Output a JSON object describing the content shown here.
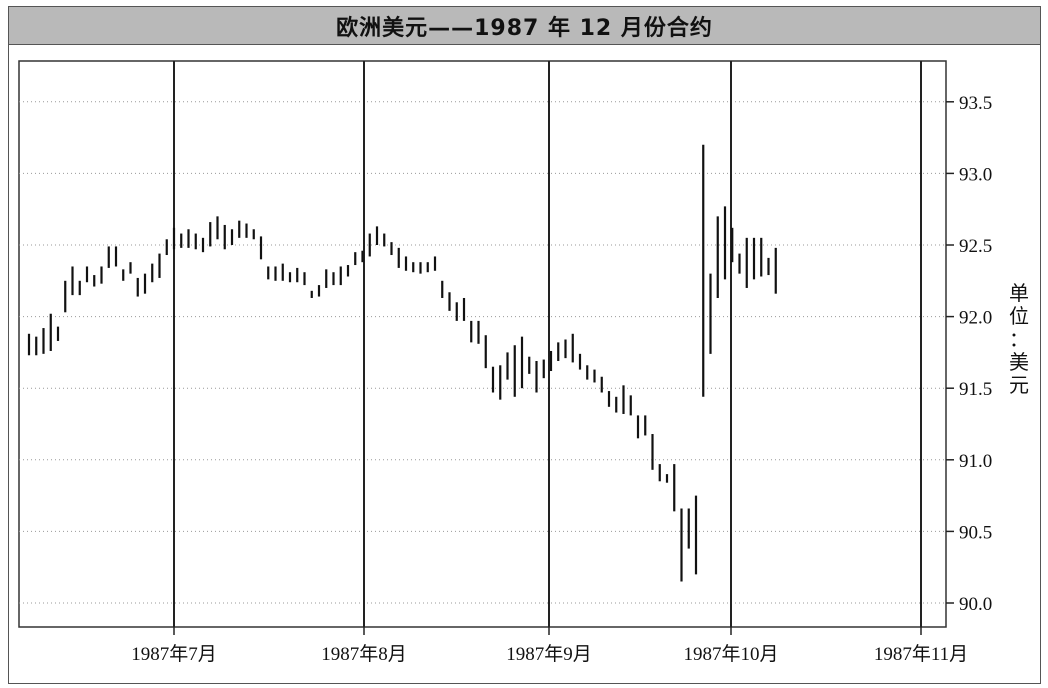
{
  "chart_data": {
    "type": "ohlc",
    "title": "欧洲美元——1987 年 12 月份合约",
    "ylabel": "单位：美元",
    "y_axis_side": "right",
    "ylim": [
      89.95,
      93.75
    ],
    "y_ticks": [
      "90.0",
      "90.5",
      "91.0",
      "91.5",
      "92.0",
      "92.5",
      "93.0",
      "93.5"
    ],
    "x_ticks": [
      "1987年7月",
      "1987年8月",
      "1987年9月",
      "1987年10月",
      "1987年11月"
    ],
    "grid": "vertical lines at month starts, dotted horizontal lines at y ticks",
    "bars": [
      [
        91.88,
        91.73
      ],
      [
        91.86,
        91.73
      ],
      [
        91.92,
        91.74
      ],
      [
        92.02,
        91.76
      ],
      [
        91.93,
        91.83
      ],
      [
        92.25,
        92.03
      ],
      [
        92.35,
        92.15
      ],
      [
        92.25,
        92.15
      ],
      [
        92.35,
        92.24
      ],
      [
        92.29,
        92.21
      ],
      [
        92.35,
        92.23
      ],
      [
        92.49,
        92.34
      ],
      [
        92.49,
        92.35
      ],
      [
        92.33,
        92.25
      ],
      [
        92.38,
        92.3
      ],
      [
        92.27,
        92.14
      ],
      [
        92.3,
        92.16
      ],
      [
        92.37,
        92.24
      ],
      [
        92.44,
        92.27
      ],
      [
        92.54,
        92.43
      ],
      [
        92.62,
        92.47
      ],
      [
        92.58,
        92.48
      ],
      [
        92.61,
        92.48
      ],
      [
        92.58,
        92.47
      ],
      [
        92.55,
        92.45
      ],
      [
        92.66,
        92.49
      ],
      [
        92.7,
        92.54
      ],
      [
        92.64,
        92.47
      ],
      [
        92.61,
        92.5
      ],
      [
        92.67,
        92.55
      ],
      [
        92.65,
        92.55
      ],
      [
        92.61,
        92.54
      ],
      [
        92.56,
        92.4
      ],
      [
        92.35,
        92.26
      ],
      [
        92.35,
        92.25
      ],
      [
        92.37,
        92.25
      ],
      [
        92.31,
        92.24
      ],
      [
        92.34,
        92.24
      ],
      [
        92.31,
        92.22
      ],
      [
        92.18,
        92.13
      ],
      [
        92.22,
        92.14
      ],
      [
        92.33,
        92.2
      ],
      [
        92.31,
        92.22
      ],
      [
        92.35,
        92.22
      ],
      [
        92.36,
        92.28
      ],
      [
        92.45,
        92.36
      ],
      [
        92.46,
        92.38
      ],
      [
        92.58,
        92.42
      ],
      [
        92.63,
        92.5
      ],
      [
        92.58,
        92.49
      ],
      [
        92.52,
        92.43
      ],
      [
        92.48,
        92.34
      ],
      [
        92.42,
        92.32
      ],
      [
        92.38,
        92.31
      ],
      [
        92.38,
        92.3
      ],
      [
        92.38,
        92.31
      ],
      [
        92.42,
        92.32
      ],
      [
        92.25,
        92.13
      ],
      [
        92.17,
        92.04
      ],
      [
        92.1,
        91.97
      ],
      [
        92.13,
        91.97
      ],
      [
        91.97,
        91.82
      ],
      [
        91.97,
        91.81
      ],
      [
        91.87,
        91.64
      ],
      [
        91.65,
        91.47
      ],
      [
        91.66,
        91.42
      ],
      [
        91.75,
        91.56
      ],
      [
        91.8,
        91.44
      ],
      [
        91.86,
        91.5
      ],
      [
        91.72,
        91.6
      ],
      [
        91.69,
        91.47
      ],
      [
        91.7,
        91.57
      ],
      [
        91.76,
        91.62
      ],
      [
        91.82,
        91.69
      ],
      [
        91.84,
        91.71
      ],
      [
        91.88,
        91.68
      ],
      [
        91.74,
        91.63
      ],
      [
        91.66,
        91.56
      ],
      [
        91.63,
        91.54
      ],
      [
        91.58,
        91.47
      ],
      [
        91.48,
        91.37
      ],
      [
        91.44,
        91.33
      ],
      [
        91.52,
        91.32
      ],
      [
        91.45,
        91.31
      ],
      [
        91.31,
        91.15
      ],
      [
        91.31,
        91.17
      ],
      [
        91.18,
        90.93
      ],
      [
        90.97,
        90.85
      ],
      [
        90.9,
        90.84
      ],
      [
        90.97,
        90.64
      ],
      [
        90.66,
        90.15
      ],
      [
        90.66,
        90.38
      ],
      [
        90.75,
        90.2
      ],
      [
        93.2,
        91.44
      ],
      [
        92.3,
        91.74
      ],
      [
        92.7,
        92.13
      ],
      [
        92.77,
        92.26
      ],
      [
        92.62,
        92.38
      ],
      [
        92.44,
        92.3
      ],
      [
        92.55,
        92.2
      ],
      [
        92.55,
        92.26
      ],
      [
        92.55,
        92.28
      ],
      [
        92.41,
        92.29
      ],
      [
        92.48,
        92.16
      ]
    ]
  }
}
